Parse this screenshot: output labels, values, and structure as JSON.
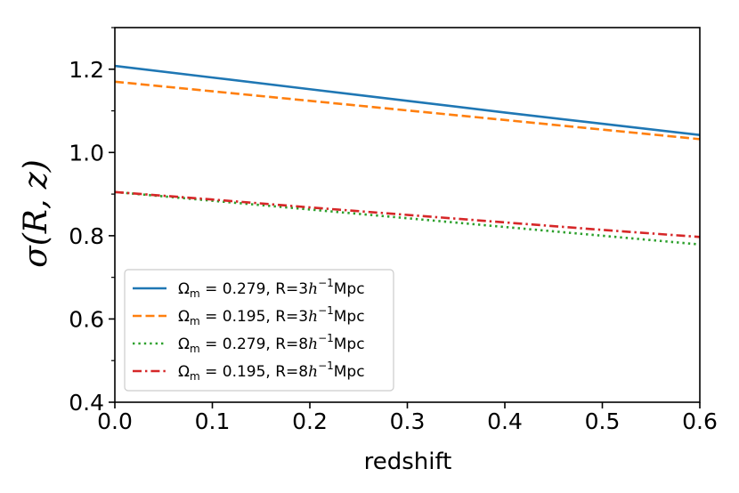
{
  "chart_data": {
    "type": "line",
    "title": "",
    "xlabel": "redshift",
    "ylabel": "σ(R, z)",
    "xlim": [
      0.0,
      0.6
    ],
    "ylim": [
      0.4,
      1.3
    ],
    "xticks": [
      0.0,
      0.1,
      0.2,
      0.3,
      0.4,
      0.5,
      0.6
    ],
    "xtick_labels": [
      "0.0",
      "0.1",
      "0.2",
      "0.3",
      "0.4",
      "0.5",
      "0.6"
    ],
    "yticks": [
      0.4,
      0.6,
      0.8,
      1.0,
      1.2
    ],
    "ytick_labels": [
      "0.4",
      "0.6",
      "0.8",
      "1.0",
      "1.2"
    ],
    "yminor_ticks": [
      0.5,
      0.7,
      0.9,
      1.1,
      1.3
    ],
    "grid": false,
    "legend_position": "lower-left",
    "series": [
      {
        "name": "Ωm = 0.279, R=3h⁻¹Mpc",
        "label_omega": "Ω",
        "label_sub": "m",
        "label_value": " = 0.279, R=3",
        "label_h": "h",
        "label_exp": "−1",
        "label_unit": "Mpc",
        "color": "#1f77b4",
        "style": "solid",
        "x": [
          0.0,
          0.1,
          0.2,
          0.3,
          0.4,
          0.5,
          0.6
        ],
        "values": [
          1.208,
          1.18,
          1.152,
          1.124,
          1.096,
          1.069,
          1.042
        ]
      },
      {
        "name": "Ωm = 0.195, R=3h⁻¹Mpc",
        "label_omega": "Ω",
        "label_sub": "m",
        "label_value": " = 0.195, R=3",
        "label_h": "h",
        "label_exp": "−1",
        "label_unit": "Mpc",
        "color": "#ff7f0e",
        "style": "dashed",
        "x": [
          0.0,
          0.1,
          0.2,
          0.3,
          0.4,
          0.5,
          0.6
        ],
        "values": [
          1.17,
          1.147,
          1.124,
          1.101,
          1.078,
          1.055,
          1.032
        ]
      },
      {
        "name": "Ωm = 0.279, R=8h⁻¹Mpc",
        "label_omega": "Ω",
        "label_sub": "m",
        "label_value": " = 0.279, R=8",
        "label_h": "h",
        "label_exp": "−1",
        "label_unit": "Mpc",
        "color": "#2ca02c",
        "style": "dotted",
        "x": [
          0.0,
          0.1,
          0.2,
          0.3,
          0.4,
          0.5,
          0.6
        ],
        "values": [
          0.905,
          0.884,
          0.863,
          0.842,
          0.821,
          0.8,
          0.779
        ]
      },
      {
        "name": "Ωm = 0.195, R=8h⁻¹Mpc",
        "label_omega": "Ω",
        "label_sub": "m",
        "label_value": " = 0.195, R=8",
        "label_h": "h",
        "label_exp": "−1",
        "label_unit": "Mpc",
        "color": "#d62728",
        "style": "dashdot",
        "x": [
          0.0,
          0.1,
          0.2,
          0.3,
          0.4,
          0.5,
          0.6
        ],
        "values": [
          0.905,
          0.887,
          0.868,
          0.85,
          0.832,
          0.814,
          0.797
        ]
      }
    ]
  }
}
